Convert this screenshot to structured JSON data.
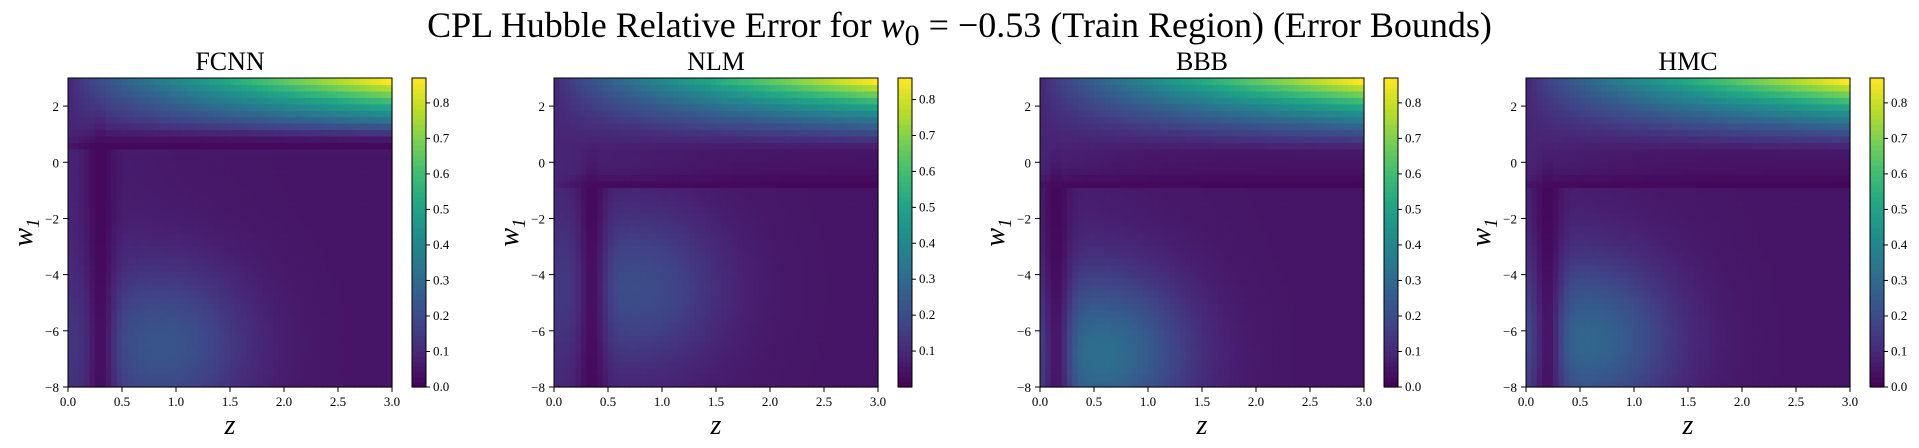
{
  "suptitle": {
    "prefix": "CPL Hubble Relative Error for ",
    "math": "w",
    "sub": "0",
    "eq": " = −0.53",
    "suffix": " (Train Region) (Error Bounds)"
  },
  "chart_data": [
    {
      "type": "heatmap",
      "title": "FCNN",
      "xlabel": "z",
      "ylabel": "w",
      "ylabel_sub": "1",
      "xlim": [
        0.0,
        3.0
      ],
      "ylim": [
        -8,
        3
      ],
      "xticks": [
        "0.0",
        "0.5",
        "1.0",
        "1.5",
        "2.0",
        "2.5",
        "3.0"
      ],
      "yticks": [
        "−8",
        "−6",
        "−4",
        "−2",
        "0",
        "2"
      ],
      "colormap": "viridis",
      "vmin": 0.0,
      "vmax": 0.87,
      "colorbar_ticks": [
        "0.0",
        "0.1",
        "0.2",
        "0.3",
        "0.4",
        "0.5",
        "0.6",
        "0.7",
        "0.8"
      ],
      "error_surface": {
        "high_corner": "top-right",
        "max_value": 0.87,
        "dark_valley_curve": "near z≈0.3, bending to w1≈0.5",
        "lower_blob_peak": 0.17
      }
    },
    {
      "type": "heatmap",
      "title": "NLM",
      "xlabel": "z",
      "ylabel": "w",
      "ylabel_sub": "1",
      "xlim": [
        0.0,
        3.0
      ],
      "ylim": [
        -8,
        3
      ],
      "xticks": [
        "0.0",
        "0.5",
        "1.0",
        "1.5",
        "2.0",
        "2.5",
        "3.0"
      ],
      "yticks": [
        "−8",
        "−6",
        "−4",
        "−2",
        "0",
        "2"
      ],
      "colormap": "viridis",
      "vmin": 0.0,
      "vmax": 0.86,
      "colorbar_ticks": [
        "0.1",
        "0.2",
        "0.3",
        "0.4",
        "0.5",
        "0.6",
        "0.7",
        "0.8"
      ],
      "error_surface": {
        "high_corner": "top-right",
        "max_value": 0.86,
        "dark_valley_curve": "near z≈0.35, bending to w1≈-1",
        "lower_blob_peak": 0.14
      }
    },
    {
      "type": "heatmap",
      "title": "BBB",
      "xlabel": "z",
      "ylabel": "w",
      "ylabel_sub": "1",
      "xlim": [
        0.0,
        3.0
      ],
      "ylim": [
        -8,
        3
      ],
      "xticks": [
        "0.0",
        "0.5",
        "1.0",
        "1.5",
        "2.0",
        "2.5",
        "3.0"
      ],
      "yticks": [
        "−8",
        "−6",
        "−4",
        "−2",
        "0",
        "2"
      ],
      "colormap": "viridis",
      "vmin": 0.0,
      "vmax": 0.87,
      "colorbar_ticks": [
        "0.0",
        "0.1",
        "0.2",
        "0.3",
        "0.4",
        "0.5",
        "0.6",
        "0.7",
        "0.8"
      ],
      "error_surface": {
        "high_corner": "top-right",
        "max_value": 0.87,
        "dark_valley_curve": "near z≈0.15, bending to w1≈-1",
        "lower_blob_peak": 0.25
      }
    },
    {
      "type": "heatmap",
      "title": "HMC",
      "xlabel": "z",
      "ylabel": "w",
      "ylabel_sub": "1",
      "xlim": [
        0.0,
        3.0
      ],
      "ylim": [
        -8,
        3
      ],
      "xticks": [
        "0.0",
        "0.5",
        "1.0",
        "1.5",
        "2.0",
        "2.5",
        "3.0"
      ],
      "yticks": [
        "−8",
        "−6",
        "−4",
        "−2",
        "0",
        "2"
      ],
      "colormap": "viridis",
      "vmin": 0.0,
      "vmax": 0.87,
      "colorbar_ticks": [
        "0.0",
        "0.1",
        "0.2",
        "0.3",
        "0.4",
        "0.5",
        "0.6",
        "0.7",
        "0.8"
      ],
      "error_surface": {
        "high_corner": "top-right",
        "max_value": 0.87,
        "dark_valley_curve": "near z≈0.2, bending to w1≈-1",
        "lower_blob_peak": 0.22
      }
    }
  ]
}
